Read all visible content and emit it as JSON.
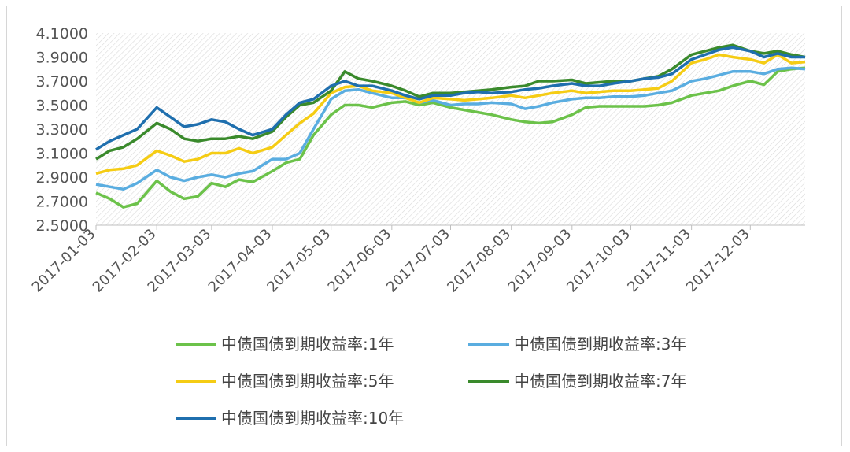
{
  "chart_data": {
    "type": "line",
    "title": "",
    "xlabel": "",
    "ylabel": "",
    "ylim": [
      2.5,
      4.1
    ],
    "yticks": [
      "2.5000",
      "2.7000",
      "2.9000",
      "3.1000",
      "3.3000",
      "3.5000",
      "3.7000",
      "3.9000",
      "4.1000"
    ],
    "xticks": [
      "2017-01-03",
      "2017-02-03",
      "2017-03-03",
      "2017-04-03",
      "2017-05-03",
      "2017-06-03",
      "2017-07-03",
      "2017-08-03",
      "2017-09-03",
      "2017-10-03",
      "2017-11-03",
      "2017-12-03"
    ],
    "x_range": [
      "2017-01-03",
      "2017-12-31"
    ],
    "grid": false,
    "plot_background": "diagonal hatch",
    "legend_position": "bottom",
    "x": [
      "2017-01-03",
      "2017-01-10",
      "2017-01-17",
      "2017-01-24",
      "2017-02-03",
      "2017-02-10",
      "2017-02-17",
      "2017-02-24",
      "2017-03-03",
      "2017-03-10",
      "2017-03-17",
      "2017-03-24",
      "2017-04-03",
      "2017-04-10",
      "2017-04-17",
      "2017-04-24",
      "2017-05-03",
      "2017-05-10",
      "2017-05-17",
      "2017-05-24",
      "2017-06-03",
      "2017-06-10",
      "2017-06-17",
      "2017-06-24",
      "2017-07-03",
      "2017-07-10",
      "2017-07-17",
      "2017-07-24",
      "2017-08-03",
      "2017-08-10",
      "2017-08-17",
      "2017-08-24",
      "2017-09-03",
      "2017-09-10",
      "2017-09-17",
      "2017-09-24",
      "2017-10-03",
      "2017-10-10",
      "2017-10-17",
      "2017-10-24",
      "2017-11-03",
      "2017-11-10",
      "2017-11-17",
      "2017-11-24",
      "2017-12-03",
      "2017-12-10",
      "2017-12-17",
      "2017-12-24",
      "2017-12-31"
    ],
    "series": [
      {
        "name": "中债国债到期收益率:1年",
        "color": "#6cc24a",
        "values": [
          2.77,
          2.72,
          2.65,
          2.68,
          2.87,
          2.78,
          2.72,
          2.74,
          2.85,
          2.82,
          2.88,
          2.86,
          2.95,
          3.02,
          3.05,
          3.25,
          3.42,
          3.5,
          3.5,
          3.48,
          3.52,
          3.53,
          3.5,
          3.52,
          3.48,
          3.46,
          3.44,
          3.42,
          3.38,
          3.36,
          3.35,
          3.36,
          3.42,
          3.48,
          3.49,
          3.49,
          3.49,
          3.49,
          3.5,
          3.52,
          3.58,
          3.6,
          3.62,
          3.66,
          3.7,
          3.67,
          3.78,
          3.8,
          3.81
        ]
      },
      {
        "name": "中债国债到期收益率:3年",
        "color": "#5aade0",
        "values": [
          2.84,
          2.82,
          2.8,
          2.85,
          2.96,
          2.9,
          2.87,
          2.9,
          2.92,
          2.9,
          2.93,
          2.95,
          3.05,
          3.05,
          3.1,
          3.3,
          3.55,
          3.62,
          3.63,
          3.6,
          3.56,
          3.56,
          3.52,
          3.54,
          3.5,
          3.51,
          3.51,
          3.52,
          3.51,
          3.47,
          3.49,
          3.52,
          3.55,
          3.56,
          3.56,
          3.57,
          3.57,
          3.58,
          3.6,
          3.62,
          3.7,
          3.72,
          3.75,
          3.78,
          3.78,
          3.76,
          3.8,
          3.81,
          3.8
        ]
      },
      {
        "name": "中债国债到期收益率:5年",
        "color": "#f5cc14",
        "values": [
          2.93,
          2.96,
          2.97,
          3.0,
          3.12,
          3.08,
          3.03,
          3.05,
          3.1,
          3.1,
          3.14,
          3.1,
          3.15,
          3.25,
          3.35,
          3.43,
          3.6,
          3.65,
          3.66,
          3.62,
          3.6,
          3.56,
          3.52,
          3.56,
          3.55,
          3.54,
          3.55,
          3.56,
          3.58,
          3.56,
          3.58,
          3.6,
          3.62,
          3.6,
          3.61,
          3.62,
          3.62,
          3.63,
          3.64,
          3.7,
          3.85,
          3.88,
          3.92,
          3.9,
          3.88,
          3.85,
          3.92,
          3.85,
          3.86
        ]
      },
      {
        "name": "中债国债到期收益率:7年",
        "color": "#3a8a2c",
        "values": [
          3.05,
          3.12,
          3.15,
          3.22,
          3.35,
          3.3,
          3.22,
          3.2,
          3.22,
          3.22,
          3.24,
          3.22,
          3.28,
          3.4,
          3.5,
          3.52,
          3.62,
          3.78,
          3.72,
          3.7,
          3.66,
          3.62,
          3.57,
          3.6,
          3.6,
          3.61,
          3.62,
          3.63,
          3.65,
          3.66,
          3.7,
          3.7,
          3.71,
          3.68,
          3.69,
          3.7,
          3.7,
          3.72,
          3.74,
          3.8,
          3.92,
          3.95,
          3.98,
          4.0,
          3.95,
          3.93,
          3.95,
          3.92,
          3.9
        ]
      },
      {
        "name": "中债国债到期收益率:10年",
        "color": "#1f6fae",
        "values": [
          3.13,
          3.2,
          3.25,
          3.3,
          3.48,
          3.4,
          3.32,
          3.34,
          3.38,
          3.36,
          3.3,
          3.25,
          3.3,
          3.42,
          3.52,
          3.55,
          3.66,
          3.7,
          3.66,
          3.66,
          3.62,
          3.58,
          3.55,
          3.58,
          3.58,
          3.6,
          3.61,
          3.6,
          3.61,
          3.63,
          3.64,
          3.66,
          3.68,
          3.66,
          3.66,
          3.68,
          3.7,
          3.72,
          3.73,
          3.76,
          3.88,
          3.92,
          3.96,
          3.98,
          3.95,
          3.9,
          3.93,
          3.9,
          3.9
        ]
      }
    ]
  }
}
